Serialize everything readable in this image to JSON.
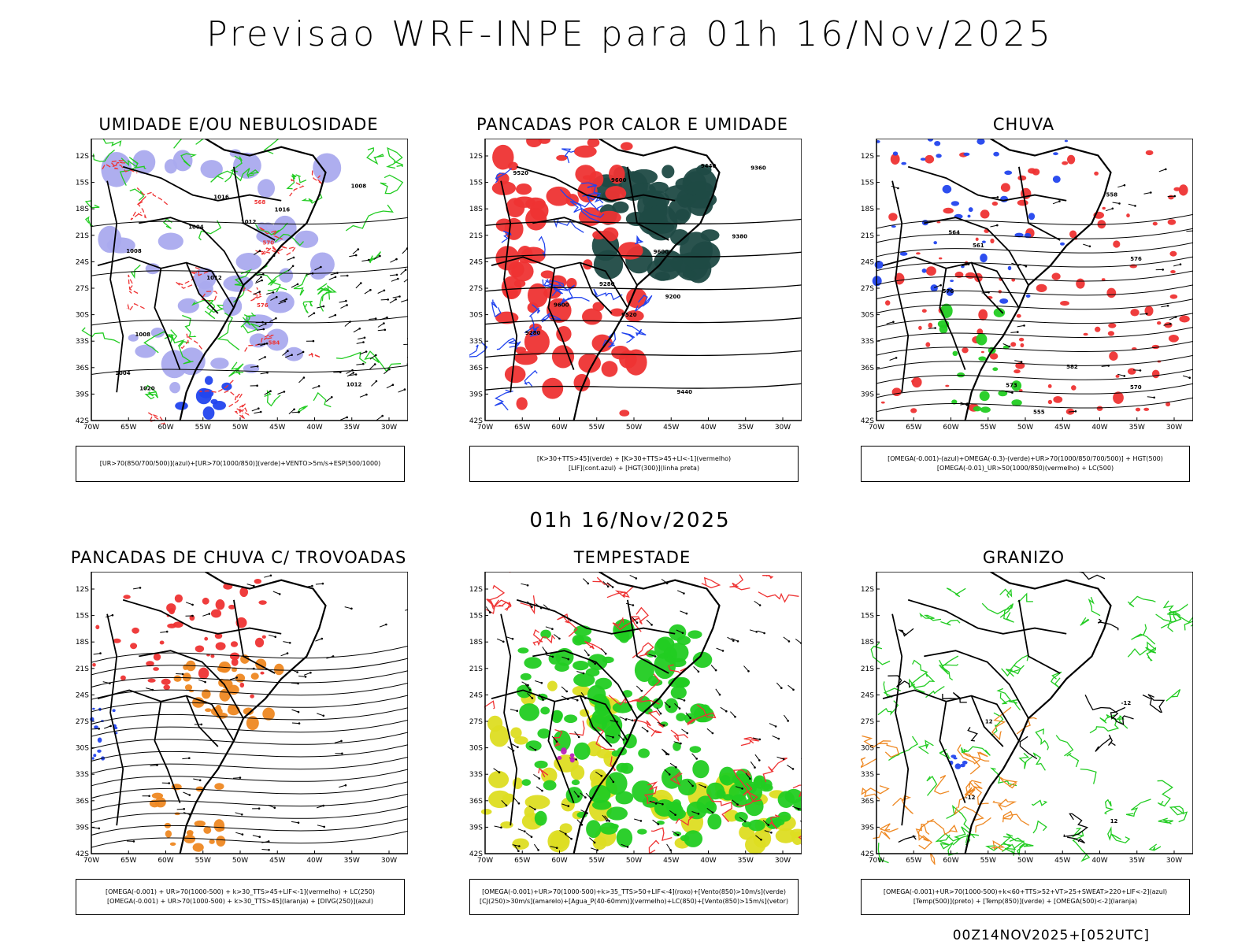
{
  "header": {
    "title": "Previsao WRF-INPE  para 01h 16/Nov/2025"
  },
  "mid_title": "01h 16/Nov/2025",
  "footer": "00Z14NOV2025+[052UTC]",
  "axes": {
    "lat_ticks": [
      "12S",
      "15S",
      "18S",
      "21S",
      "24S",
      "27S",
      "30S",
      "33S",
      "36S",
      "39S",
      "42S"
    ],
    "lon_ticks": [
      "70W",
      "65W",
      "60W",
      "55W",
      "50W",
      "45W",
      "40W",
      "35W",
      "30W"
    ]
  },
  "colors": {
    "red": "#ee3333",
    "green": "#22cc22",
    "blue": "#2244ee",
    "lavender": "#aaaaee",
    "darkteal": "#1f4a44",
    "orange": "#ee8822",
    "yellow": "#dddd22",
    "magenta": "#bb22bb"
  },
  "panels": [
    {
      "id": "umidade",
      "title": "UMIDADE E/OU NEBULOSIDADE",
      "legend": [
        "[UR>70(850/700/500)](azul)+[UR>70(1000/850)](verde)+VENTO>5m/s+ESP(500/1000)"
      ],
      "labels": [
        "1012",
        "1008",
        "1008",
        "1012",
        "1016",
        "1020",
        "1016",
        "1012",
        "1008",
        "1004",
        "1004",
        "584",
        "576",
        "568",
        "570"
      ]
    },
    {
      "id": "pancadas",
      "title": "PANCADAS POR CALOR E UMIDADE",
      "legend": [
        "[K>30+TTS>45](verde) + [K>30+TTS>45+LI<-1](vermelho)",
        "[LIF](cont.azul) + [HGT(300)](linha preta)"
      ],
      "labels": [
        "9600",
        "9600",
        "9520",
        "9600",
        "9520",
        "9440",
        "9360",
        "9280",
        "9200",
        "9440",
        "9380",
        "9280"
      ]
    },
    {
      "id": "chuva",
      "title": "CHUVA",
      "legend": [
        "[OMEGA(-0.001)-(azul)+OMEGA(-0.3)-(verde)+UR>70(1000/850/700/500)] + HGT(500)",
        "[OMEGA(-0.01)_UR>50(1000/850)(vermelho) + LC(500)"
      ],
      "labels": [
        "582",
        "576",
        "576",
        "573",
        "570",
        "564",
        "561",
        "558",
        "555"
      ]
    },
    {
      "id": "trovoadas",
      "title": "PANCADAS DE CHUVA C/ TROVOADAS",
      "legend": [
        "[OMEGA(-0.001) + UR>70(1000-500) + k>30_TTS>45+LIF<-1](vermelho) + LC(250)",
        "[OMEGA(-0.001) + UR>70(1000-500) + k>30_TTS>45](laranja) + [DIVG(250)](azul)"
      ],
      "labels": []
    },
    {
      "id": "tempestade",
      "title": "TEMPESTADE",
      "legend": [
        "[OMEGA(-0.001)+UR>70(1000-500)+k>35_TTS>50+LIF<-4](roxo)+[Vento(850)>10m/s](verde)",
        "[CJ(250)>30m/s](amarelo)+[Agua_P(40-60mm)](vermelho)+LC(850)+[Vento(850)>15m/s](vetor)"
      ],
      "labels": []
    },
    {
      "id": "granizo",
      "title": "GRANIZO",
      "legend": [
        "[OMEGA(-0.001)+UR>70(1000-500)+k<60+TTS>52+VT>25+SWEAT>220+LIF<-2](azul)",
        "[Temp(500)](preto) + [Temp(850)](verde) + [OMEGA(500)<-2](laranja)"
      ],
      "labels": [
        "-12",
        "-12",
        "12",
        "12"
      ]
    }
  ]
}
